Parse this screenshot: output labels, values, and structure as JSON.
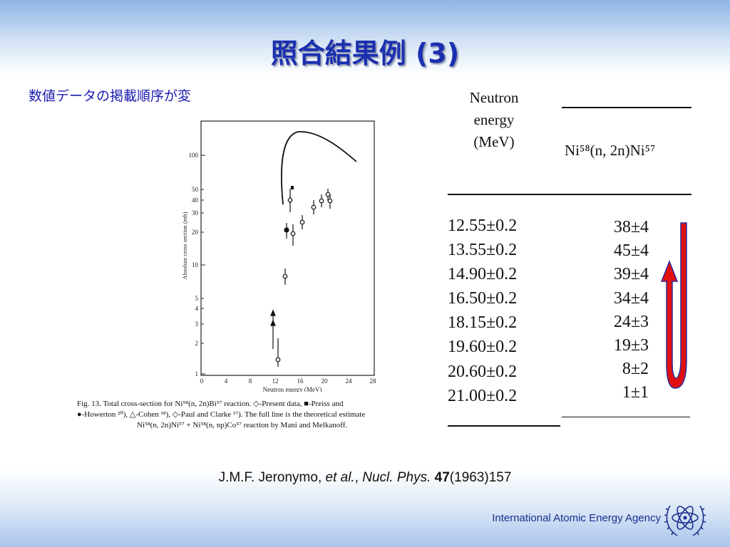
{
  "slide": {
    "title": "照合結果例 (3)",
    "subtitle": "数値データの掲載順序が変"
  },
  "figure": {
    "y_axis_label": "Absolute cross section (mb)",
    "x_axis_label": "Neutron energy (MeV)",
    "y_ticks": [
      "100",
      "50",
      "40",
      "30",
      "20",
      "10",
      "5",
      "4",
      "3",
      "2",
      "1"
    ],
    "x_ticks": [
      "0",
      "4",
      "8",
      "12",
      "16",
      "20",
      "24",
      "28"
    ],
    "caption_line1": "Fig. 13. Total cross-section for Ni⁵⁸(n, 2n)Bi⁵⁷ reaction. ◇-Present data, ■-Preiss and",
    "caption_line2": "●-Howerton ²⁰), △-Cohen ¹⁸), ◇-Paul and Clarke ¹⁷). The full line is the theoretical estimate",
    "caption_line3": "Ni⁵⁸(n, 2n)Ni⁵⁷ + Ni⁵⁸(n, np)Co⁵⁷ reaction by Mani and Melkanoff."
  },
  "table": {
    "header_energy_line1": "Neutron",
    "header_energy_line2": "energy",
    "header_energy_line3": "(MeV)",
    "header_reaction": "Ni⁵⁸(n, 2n)Ni⁵⁷",
    "energies": [
      "12.55±0.2",
      "13.55±0.2",
      "14.90±0.2",
      "16.50±0.2",
      "18.15±0.2",
      "19.60±0.2",
      "20.60±0.2",
      "21.00±0.2"
    ],
    "values": [
      "38±4",
      "45±4",
      "39±4",
      "34±4",
      "24±3",
      "19±3",
      "8±2",
      "1±1"
    ]
  },
  "colors": {
    "title": "#1a2fb0",
    "arrow": "#e01010",
    "arrow_outline": "#2a2a9a"
  },
  "citation": {
    "authors": "J.M.F. Jeronymo, ",
    "etal": "et al.",
    "sep": ", ",
    "journal": "Nucl. Phys.",
    "volume": " 47",
    "rest": "(1963)157"
  },
  "footer": {
    "agency": "International Atomic Energy Agency",
    "logo_icon": "iaea-atom-logo-icon"
  }
}
